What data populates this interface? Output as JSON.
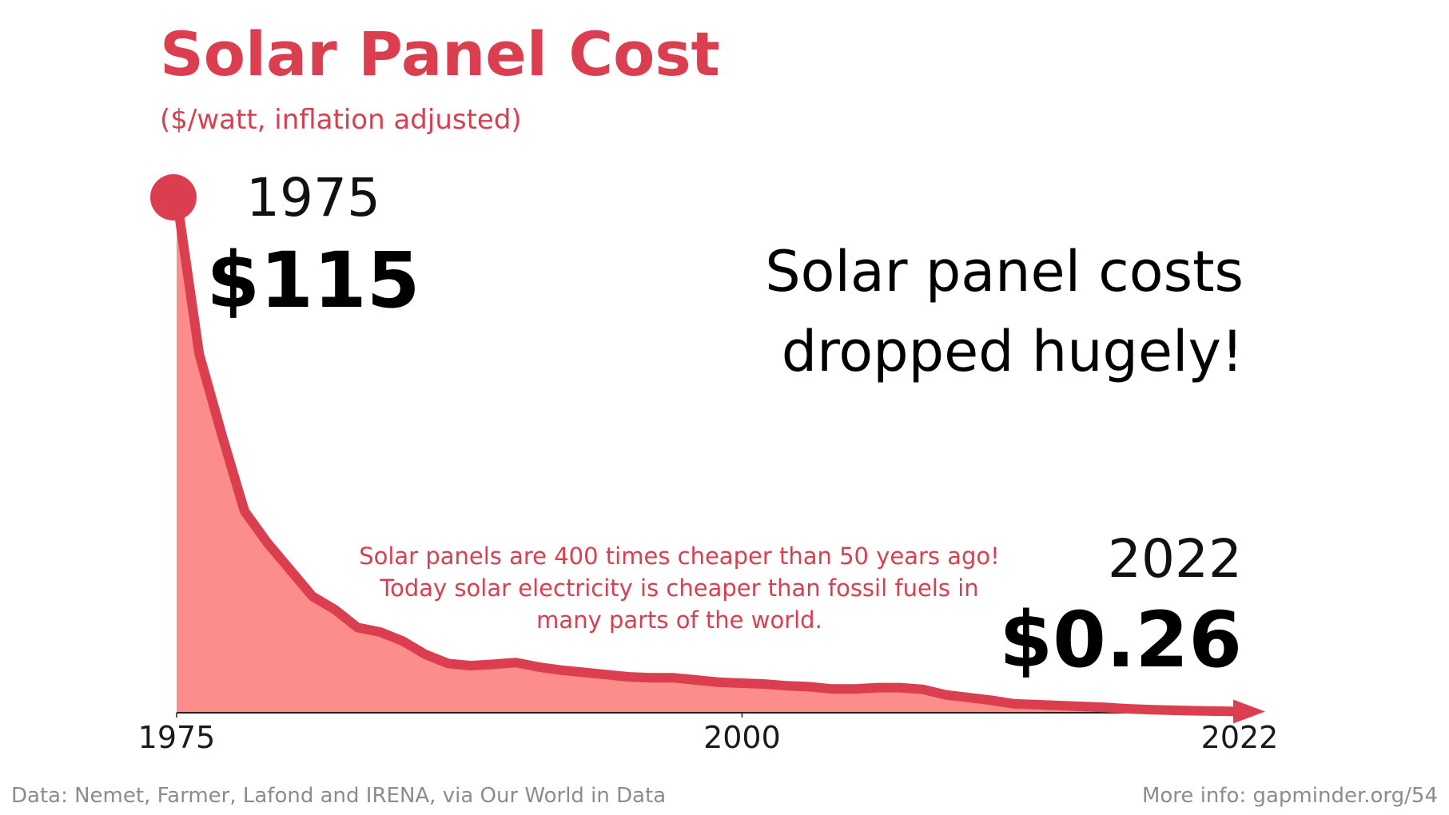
{
  "chart_data": {
    "type": "area",
    "title": "Solar Panel Cost",
    "subtitle": "($/watt, inflation adjusted)",
    "xlabel": "",
    "ylabel": "",
    "xlim": [
      1975,
      2022
    ],
    "ylim": [
      0,
      115
    ],
    "grid": false,
    "legend": "none",
    "x_ticks": [
      1975,
      2000,
      2022
    ],
    "series": [
      {
        "x": [
          1975,
          1976,
          1977,
          1978,
          1979,
          1980,
          1981,
          1982,
          1983,
          1984,
          1985,
          1986,
          1987,
          1988,
          1989,
          1990,
          1991,
          1992,
          1993,
          1994,
          1995,
          1996,
          1997,
          1998,
          1999,
          2000,
          2001,
          2002,
          2003,
          2004,
          2005,
          2006,
          2007,
          2008,
          2009,
          2010,
          2011,
          2012,
          2013,
          2014,
          2015,
          2016,
          2017,
          2018,
          2019,
          2020,
          2021,
          2022
        ],
        "values": [
          115,
          80,
          62,
          45,
          38,
          32,
          26,
          23,
          19,
          18,
          16,
          13,
          11,
          10.5,
          10.8,
          11.2,
          10.2,
          9.5,
          9,
          8.5,
          8,
          7.8,
          7.8,
          7.3,
          6.8,
          6.6,
          6.4,
          6,
          5.8,
          5.3,
          5.3,
          5.6,
          5.6,
          5.2,
          4,
          3.4,
          2.8,
          2,
          1.8,
          1.6,
          1.4,
          1.2,
          0.9,
          0.7,
          0.55,
          0.45,
          0.35,
          0.26
        ]
      }
    ],
    "colors": {
      "line": "#db3e4f",
      "fill": "#fc8d8a",
      "axis": "#222222"
    },
    "annotations": {
      "start": {
        "year": "1975",
        "value": "$115"
      },
      "end": {
        "year": "2022",
        "value": "$0.26"
      },
      "headline": [
        "Solar panel costs",
        "dropped hugely!"
      ],
      "note": [
        "Solar panels are 400 times cheaper than 50 years ago!",
        "Today solar electricity is cheaper than fossil fuels in",
        "many parts of the world."
      ]
    },
    "footer": {
      "source": "Data: Nemet, Farmer, Lafond and IRENA, via Our World in Data",
      "more_info": "More info: gapminder.org/54"
    }
  }
}
